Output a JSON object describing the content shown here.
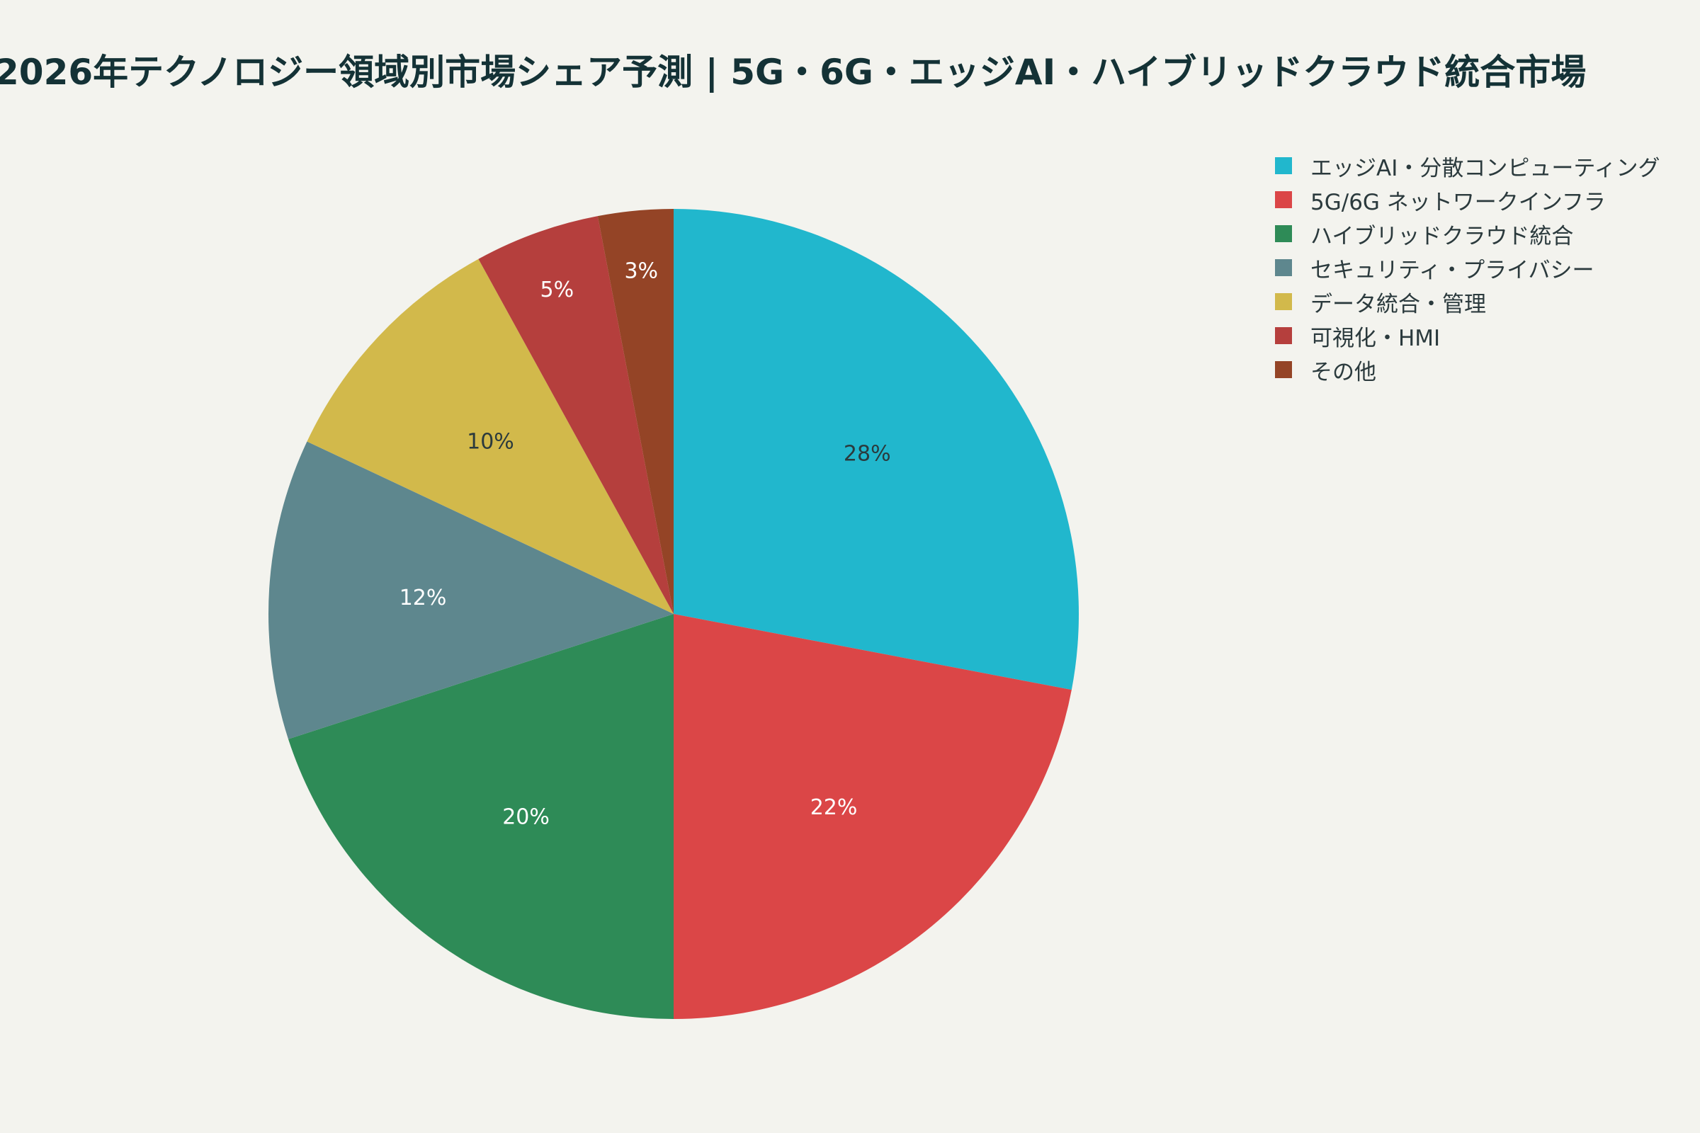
{
  "chart_data": {
    "type": "pie",
    "title": "2026年テクノロジー領域別市場シェア予測 | 5G・6G・エッジAI・ハイブリッドクラウド統合市場",
    "slices": [
      {
        "label": "エッジAI・分散コンピューティング",
        "value": 28,
        "text": "28%",
        "color": "#21b7cd",
        "label_color": "#2b3a3d"
      },
      {
        "label": "5G/6G ネットワークインフラ",
        "value": 22,
        "text": "22%",
        "color": "#db4647",
        "label_color": "#ffffff"
      },
      {
        "label": "ハイブリッドクラウド統合",
        "value": 20,
        "text": "20%",
        "color": "#2e8b57",
        "label_color": "#ffffff"
      },
      {
        "label": "セキュリティ・プライバシー",
        "value": 12,
        "text": "12%",
        "color": "#5e878e",
        "label_color": "#ffffff"
      },
      {
        "label": "データ統合・管理",
        "value": 10,
        "text": "10%",
        "color": "#d2b94b",
        "label_color": "#2b3a3d"
      },
      {
        "label": "可視化・HMI",
        "value": 5,
        "text": "5%",
        "color": "#b53f3d",
        "label_color": "#ffffff"
      },
      {
        "label": "その他",
        "value": 3,
        "text": "3%",
        "color": "#944426",
        "label_color": "#ffffff"
      }
    ],
    "direction": "clockwise",
    "start": "top",
    "legend_position": "top-right"
  }
}
